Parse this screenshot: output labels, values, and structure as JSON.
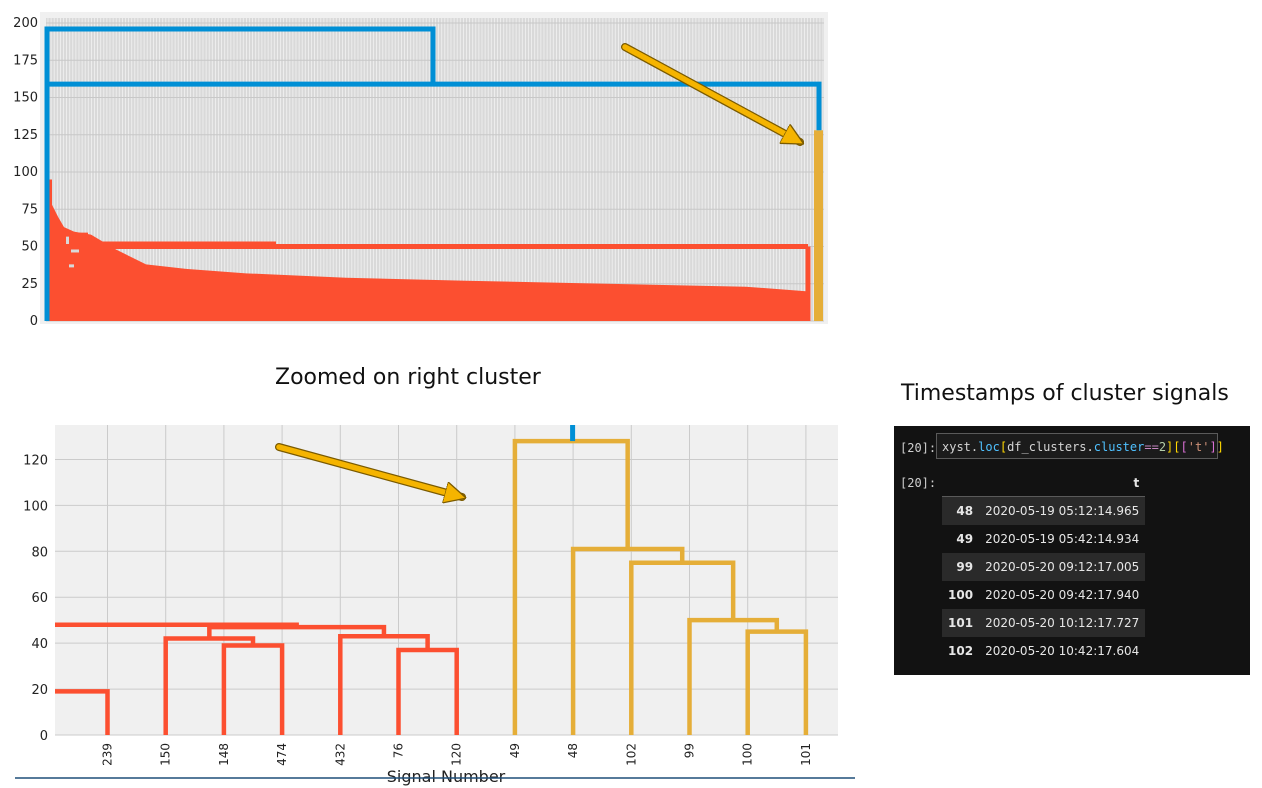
{
  "captions": {
    "zoom": "Zoomed on right cluster",
    "timestamps": "Timestamps of cluster signals"
  },
  "colors": {
    "red": "#fc4f30",
    "blue": "#008fd5",
    "gold": "#e5ae38",
    "arrow": "#f5b400",
    "plot_bg": "#f0f0f0",
    "grid": "#cbcbcb"
  },
  "chart_data": [
    {
      "type": "dendrogram",
      "ylim": [
        0,
        200
      ],
      "yticks": [
        "0",
        "25",
        "50",
        "75",
        "100",
        "125",
        "150",
        "175",
        "200"
      ],
      "grid": true,
      "clusters": [
        {
          "color": "#fc4f30",
          "merge_height": 50
        },
        {
          "color": "#e5ae38",
          "merge_height": 128
        }
      ],
      "links": [
        {
          "color": "#008fd5",
          "height": 196
        },
        {
          "color": "#008fd5",
          "height": 159
        }
      ],
      "annotations": [
        {
          "type": "arrow",
          "points_to": "right cluster"
        }
      ]
    },
    {
      "type": "dendrogram",
      "xlabel": "Signal Number",
      "ylim": [
        0,
        135
      ],
      "yticks": [
        "0",
        "20",
        "40",
        "60",
        "80",
        "100",
        "120"
      ],
      "grid": true,
      "leaves": [
        "239",
        "150",
        "148",
        "474",
        "432",
        "76",
        "120",
        "49",
        "48",
        "102",
        "99",
        "100",
        "101"
      ],
      "merges": [
        {
          "color": "#fc4f30",
          "left": 0,
          "right": 0,
          "height": 19
        },
        {
          "color": "#fc4f30",
          "left": 2,
          "right": 3,
          "height": 39
        },
        {
          "color": "#fc4f30",
          "left": 1,
          "right": 2.5,
          "height": 42
        },
        {
          "color": "#fc4f30",
          "left": 5,
          "right": 6,
          "height": 37
        },
        {
          "color": "#fc4f30",
          "left": 4,
          "right": 5.5,
          "height": 43
        },
        {
          "color": "#fc4f30",
          "left": 1.75,
          "right": 4.75,
          "height": 47
        },
        {
          "color": "#fc4f30",
          "left": 0,
          "right": 3.25,
          "height": 48
        },
        {
          "color": "#e5ae38",
          "left": 11,
          "right": 12,
          "height": 45
        },
        {
          "color": "#e5ae38",
          "left": 10,
          "right": 11.5,
          "height": 50
        },
        {
          "color": "#e5ae38",
          "left": 9,
          "right": 10.75,
          "height": 75
        },
        {
          "color": "#e5ae38",
          "left": 8,
          "right": 9.875,
          "height": 81
        },
        {
          "color": "#e5ae38",
          "left": 7,
          "right": 8.9375,
          "height": 128
        }
      ],
      "stub": {
        "color": "#008fd5",
        "x": 8,
        "from": 128,
        "to": 135
      },
      "annotations": [
        {
          "type": "arrow",
          "points_to": "gold cluster"
        }
      ]
    }
  ],
  "notebook": {
    "in_prompt": "[20]:",
    "out_prompt": "[20]:",
    "code": [
      {
        "t": "xyst",
        "c": "tok-name"
      },
      {
        "t": ".",
        "c": "tok-name"
      },
      {
        "t": "loc",
        "c": "tok-attr"
      },
      {
        "t": "[",
        "c": "tok-brk1"
      },
      {
        "t": "df_clusters",
        "c": "tok-name"
      },
      {
        "t": ".",
        "c": "tok-name"
      },
      {
        "t": "cluster",
        "c": "tok-attr"
      },
      {
        "t": "==",
        "c": "tok-op"
      },
      {
        "t": "2",
        "c": "tok-num"
      },
      {
        "t": "]",
        "c": "tok-brk1"
      },
      {
        "t": "[",
        "c": "tok-brk1"
      },
      {
        "t": "[",
        "c": "tok-brk2"
      },
      {
        "t": "'t'",
        "c": "tok-str"
      },
      {
        "t": "]",
        "c": "tok-brk2"
      },
      {
        "t": "]",
        "c": "tok-brk1"
      }
    ],
    "table": {
      "columns": [
        "",
        "t"
      ],
      "rows": [
        {
          "index": "48",
          "t": "2020-05-19 05:12:14.965"
        },
        {
          "index": "49",
          "t": "2020-05-19 05:42:14.934"
        },
        {
          "index": "99",
          "t": "2020-05-20 09:12:17.005"
        },
        {
          "index": "100",
          "t": "2020-05-20 09:42:17.940"
        },
        {
          "index": "101",
          "t": "2020-05-20 10:12:17.727"
        },
        {
          "index": "102",
          "t": "2020-05-20 10:42:17.604"
        }
      ]
    }
  }
}
